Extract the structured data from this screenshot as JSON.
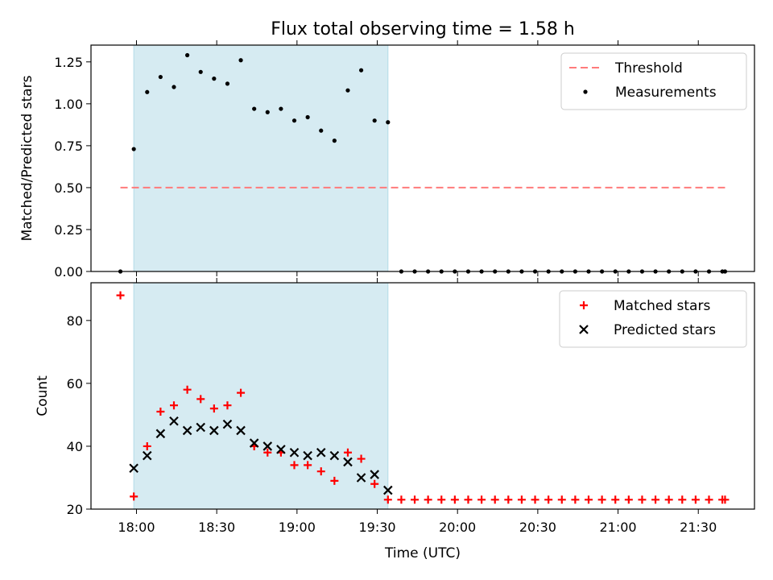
{
  "figure": {
    "title": "Flux total observing time = 1.58 h",
    "xlabel": "Time (UTC)",
    "x_ticks": [
      {
        "t": 0,
        "label": "18:00"
      },
      {
        "t": 30,
        "label": "18:30"
      },
      {
        "t": 60,
        "label": "19:00"
      },
      {
        "t": 90,
        "label": "19:30"
      },
      {
        "t": 120,
        "label": "20:00"
      },
      {
        "t": 150,
        "label": "20:30"
      },
      {
        "t": 180,
        "label": "21:00"
      },
      {
        "t": 210,
        "label": "21:30"
      }
    ],
    "xlim_minutes_after_1800": [
      -17,
      231
    ],
    "observing_window_minutes_after_1800": [
      -1,
      94
    ]
  },
  "chart_data": [
    {
      "type": "scatter",
      "ylabel": "Matched/Predicted stars",
      "ylim": [
        0,
        1.35
      ],
      "y_ticks": [
        "0.00",
        "0.25",
        "0.50",
        "0.75",
        "1.00",
        "1.25"
      ],
      "legend_placement": "top-right",
      "threshold": {
        "name": "Threshold",
        "value": 0.5,
        "x_range": [
          -6,
          220
        ],
        "color": "#ff7b7b"
      },
      "series": [
        {
          "name": "Measurements",
          "color": "#000000",
          "points": [
            [
              -6,
              0.0
            ],
            [
              -1,
              0.73
            ],
            [
              4,
              1.07
            ],
            [
              9,
              1.16
            ],
            [
              14,
              1.1
            ],
            [
              19,
              1.29
            ],
            [
              24,
              1.19
            ],
            [
              29,
              1.15
            ],
            [
              34,
              1.12
            ],
            [
              39,
              1.26
            ],
            [
              44,
              0.97
            ],
            [
              49,
              0.95
            ],
            [
              54,
              0.97
            ],
            [
              59,
              0.9
            ],
            [
              64,
              0.92
            ],
            [
              69,
              0.84
            ],
            [
              74,
              0.78
            ],
            [
              79,
              1.08
            ],
            [
              84,
              1.2
            ],
            [
              89,
              0.9
            ],
            [
              94,
              0.89
            ],
            [
              99,
              0.0
            ],
            [
              104,
              0.0
            ],
            [
              109,
              0.0
            ],
            [
              114,
              0.0
            ],
            [
              119,
              0.0
            ],
            [
              124,
              0.0
            ],
            [
              129,
              0.0
            ],
            [
              134,
              0.0
            ],
            [
              139,
              0.0
            ],
            [
              144,
              0.0
            ],
            [
              149,
              0.0
            ],
            [
              154,
              0.0
            ],
            [
              159,
              0.0
            ],
            [
              164,
              0.0
            ],
            [
              169,
              0.0
            ],
            [
              174,
              0.0
            ],
            [
              179,
              0.0
            ],
            [
              184,
              0.0
            ],
            [
              189,
              0.0
            ],
            [
              194,
              0.0
            ],
            [
              199,
              0.0
            ],
            [
              204,
              0.0
            ],
            [
              209,
              0.0
            ],
            [
              214,
              0.0
            ],
            [
              219,
              0.0
            ],
            [
              220,
              0.0
            ]
          ]
        }
      ]
    },
    {
      "type": "scatter",
      "ylabel": "Count",
      "ylim": [
        20,
        92
      ],
      "y_ticks": [
        "20",
        "40",
        "60",
        "80"
      ],
      "legend_placement": "top-right",
      "series": [
        {
          "name": "Matched stars",
          "marker": "plus",
          "color": "#ff0000",
          "points": [
            [
              -6,
              88
            ],
            [
              -1,
              24
            ],
            [
              4,
              40
            ],
            [
              9,
              51
            ],
            [
              14,
              53
            ],
            [
              19,
              58
            ],
            [
              24,
              55
            ],
            [
              29,
              52
            ],
            [
              34,
              53
            ],
            [
              39,
              57
            ],
            [
              44,
              40
            ],
            [
              49,
              38
            ],
            [
              54,
              38
            ],
            [
              59,
              34
            ],
            [
              64,
              34
            ],
            [
              69,
              32
            ],
            [
              74,
              29
            ],
            [
              79,
              38
            ],
            [
              84,
              36
            ],
            [
              89,
              28
            ],
            [
              94,
              23
            ],
            [
              99,
              23
            ],
            [
              104,
              23
            ],
            [
              109,
              23
            ],
            [
              114,
              23
            ],
            [
              119,
              23
            ],
            [
              124,
              23
            ],
            [
              129,
              23
            ],
            [
              134,
              23
            ],
            [
              139,
              23
            ],
            [
              144,
              23
            ],
            [
              149,
              23
            ],
            [
              154,
              23
            ],
            [
              159,
              23
            ],
            [
              164,
              23
            ],
            [
              169,
              23
            ],
            [
              174,
              23
            ],
            [
              179,
              23
            ],
            [
              184,
              23
            ],
            [
              189,
              23
            ],
            [
              194,
              23
            ],
            [
              199,
              23
            ],
            [
              204,
              23
            ],
            [
              209,
              23
            ],
            [
              214,
              23
            ],
            [
              219,
              23
            ],
            [
              220,
              23
            ]
          ]
        },
        {
          "name": "Predicted stars",
          "marker": "x",
          "color": "#000000",
          "points": [
            [
              -1,
              33
            ],
            [
              4,
              37
            ],
            [
              9,
              44
            ],
            [
              14,
              48
            ],
            [
              19,
              45
            ],
            [
              24,
              46
            ],
            [
              29,
              45
            ],
            [
              34,
              47
            ],
            [
              39,
              45
            ],
            [
              44,
              41
            ],
            [
              49,
              40
            ],
            [
              54,
              39
            ],
            [
              59,
              38
            ],
            [
              64,
              37
            ],
            [
              69,
              38
            ],
            [
              74,
              37
            ],
            [
              79,
              35
            ],
            [
              84,
              30
            ],
            [
              89,
              31
            ],
            [
              94,
              26
            ]
          ]
        }
      ]
    }
  ]
}
